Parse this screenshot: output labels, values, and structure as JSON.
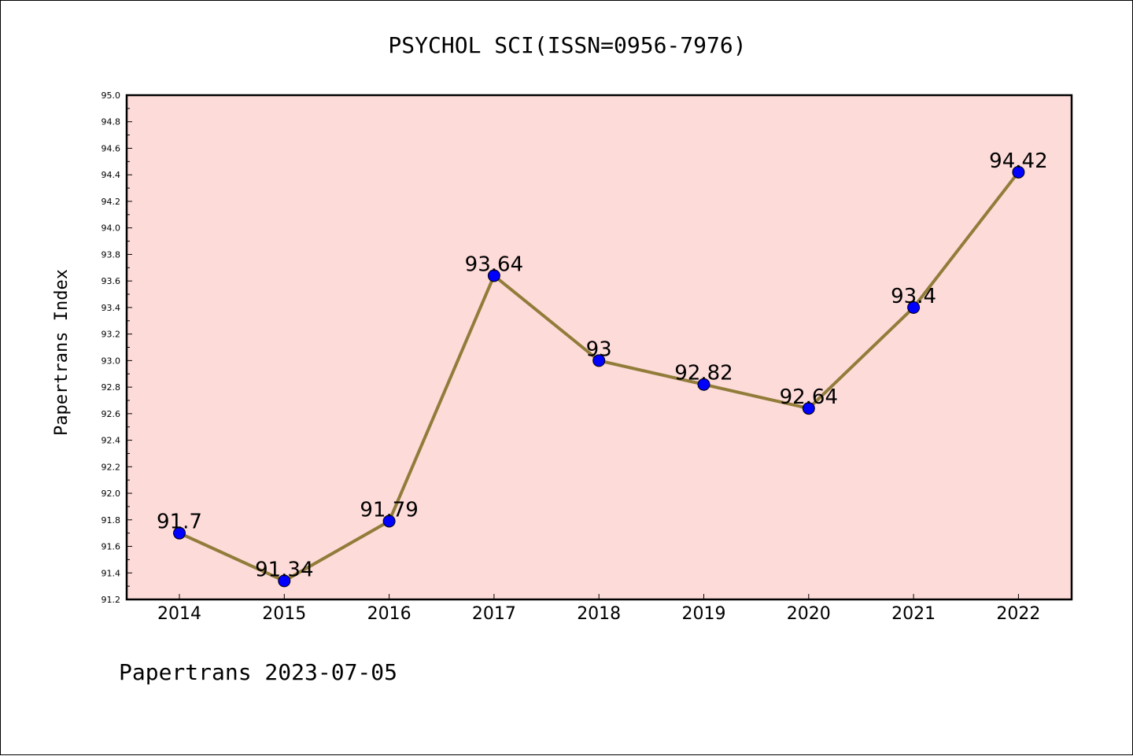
{
  "chart_data": {
    "type": "line",
    "title": "PSYCHOL SCI(ISSN=0956-7976)",
    "ylabel": "Papertrans Index",
    "xlabel": "",
    "footer": "Papertrans 2023-07-05",
    "categories": [
      "2014",
      "2015",
      "2016",
      "2017",
      "2018",
      "2019",
      "2020",
      "2021",
      "2022"
    ],
    "values": [
      91.7,
      91.34,
      91.79,
      93.64,
      93.0,
      92.82,
      92.64,
      93.4,
      94.42
    ],
    "data_labels": [
      "91.7",
      "91.34",
      "91.79",
      "93.64",
      "93",
      "92.82",
      "92.64",
      "93.4",
      "94.42"
    ],
    "ylim": [
      91.2,
      95.0
    ],
    "yticks": [
      "91.2",
      "91.4",
      "91.6",
      "91.8",
      "92.0",
      "92.2",
      "92.4",
      "92.6",
      "92.8",
      "93.0",
      "93.2",
      "93.4",
      "93.6",
      "93.8",
      "94.0",
      "94.2",
      "94.4",
      "94.6",
      "94.8",
      "95.0"
    ],
    "grid": false,
    "colors": {
      "plot_background": "#fddbd9",
      "line": "#917c3a",
      "marker": "#0000ff"
    }
  }
}
